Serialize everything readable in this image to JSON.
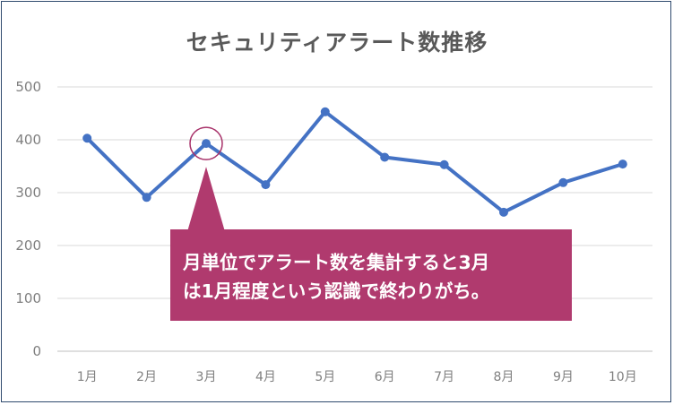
{
  "chart_data": {
    "type": "line",
    "title": "セキュリティアラート数推移",
    "categories": [
      "1月",
      "2月",
      "3月",
      "4月",
      "5月",
      "6月",
      "7月",
      "8月",
      "9月",
      "10月"
    ],
    "series": [
      {
        "values": [
          403,
          291,
          393,
          315,
          453,
          367,
          353,
          263,
          319,
          354
        ]
      }
    ],
    "ylim": [
      0,
      500
    ],
    "yticks": [
      0,
      100,
      200,
      300,
      400,
      500
    ],
    "grid": true,
    "line_color": "#4472c4",
    "highlight": {
      "category": "3月",
      "color": "#a8326a"
    },
    "callout": {
      "lines": [
        "月単位でアラート数を集計すると3月",
        "は1月程度という認識で終わりがち。"
      ],
      "color": "#b03a6e"
    }
  }
}
